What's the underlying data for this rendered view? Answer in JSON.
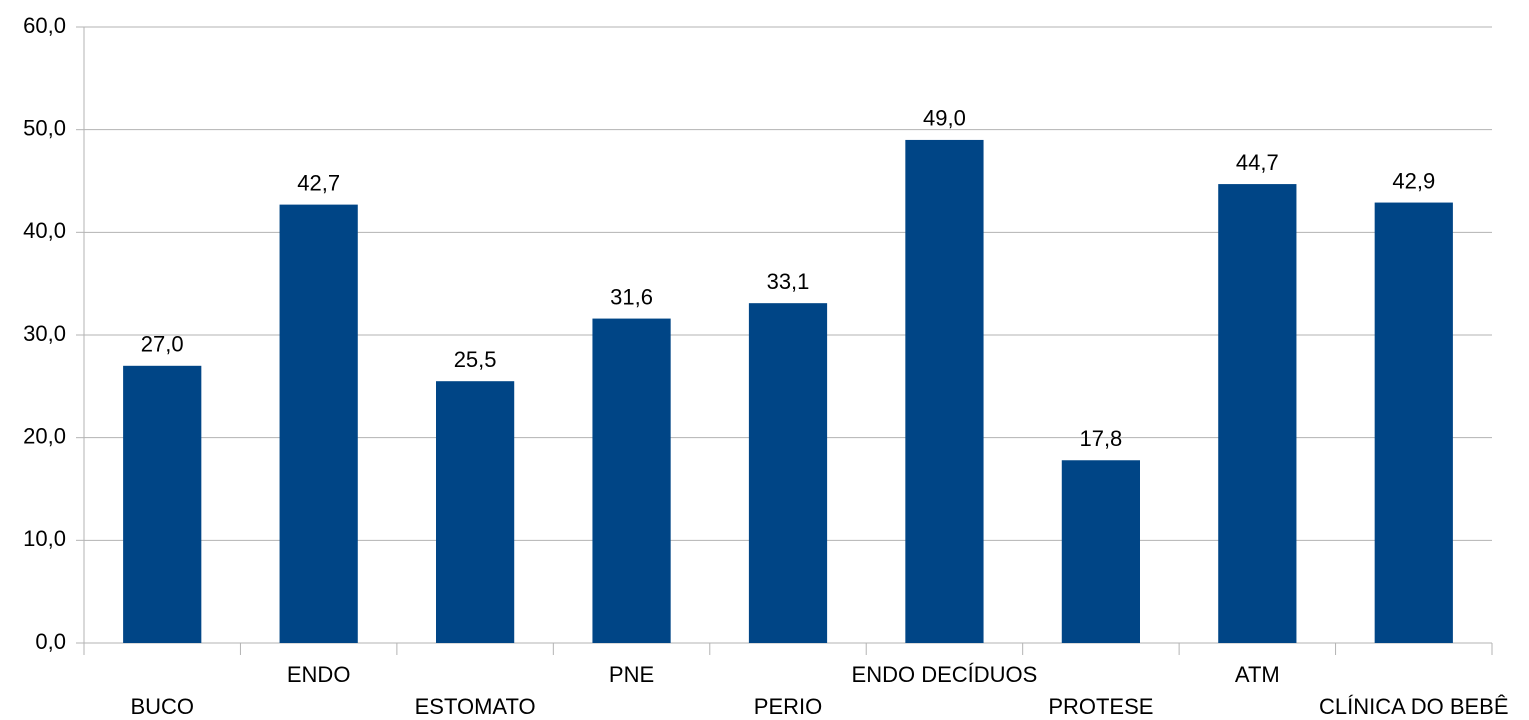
{
  "chart_data": {
    "type": "bar",
    "categories": [
      "BUCO",
      "ENDO",
      "ESTOMATO",
      "PNE",
      "PERIO",
      "ENDO DECÍDUOS",
      "PROTESE",
      "ATM",
      "CLÍNICA DO BEBÊ"
    ],
    "values": [
      27.0,
      42.7,
      25.5,
      31.6,
      33.1,
      49.0,
      17.8,
      44.7,
      42.9
    ],
    "value_labels": [
      "27,0",
      "42,7",
      "25,5",
      "31,6",
      "33,1",
      "49,0",
      "17,8",
      "44,7",
      "42,9"
    ],
    "color": "#004586",
    "ylim": [
      0,
      60
    ],
    "yticks": [
      {
        "value": 0,
        "label": "0,0"
      },
      {
        "value": 10,
        "label": "10,0"
      },
      {
        "value": 20,
        "label": "20,0"
      },
      {
        "value": 30,
        "label": "30,0"
      },
      {
        "value": 40,
        "label": "40,0"
      },
      {
        "value": 50,
        "label": "50,0"
      },
      {
        "value": 60,
        "label": "60,0"
      }
    ],
    "grid": true
  }
}
